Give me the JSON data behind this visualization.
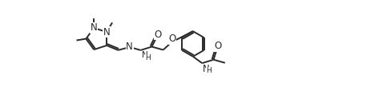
{
  "bg_color": "#ffffff",
  "line_color": "#2a2a2a",
  "line_width": 1.4,
  "font_size": 8.5,
  "fig_width": 4.89,
  "fig_height": 1.09,
  "dpi": 100,
  "xlim": [
    -1,
    18
  ],
  "ylim": [
    -2.5,
    3.0
  ]
}
